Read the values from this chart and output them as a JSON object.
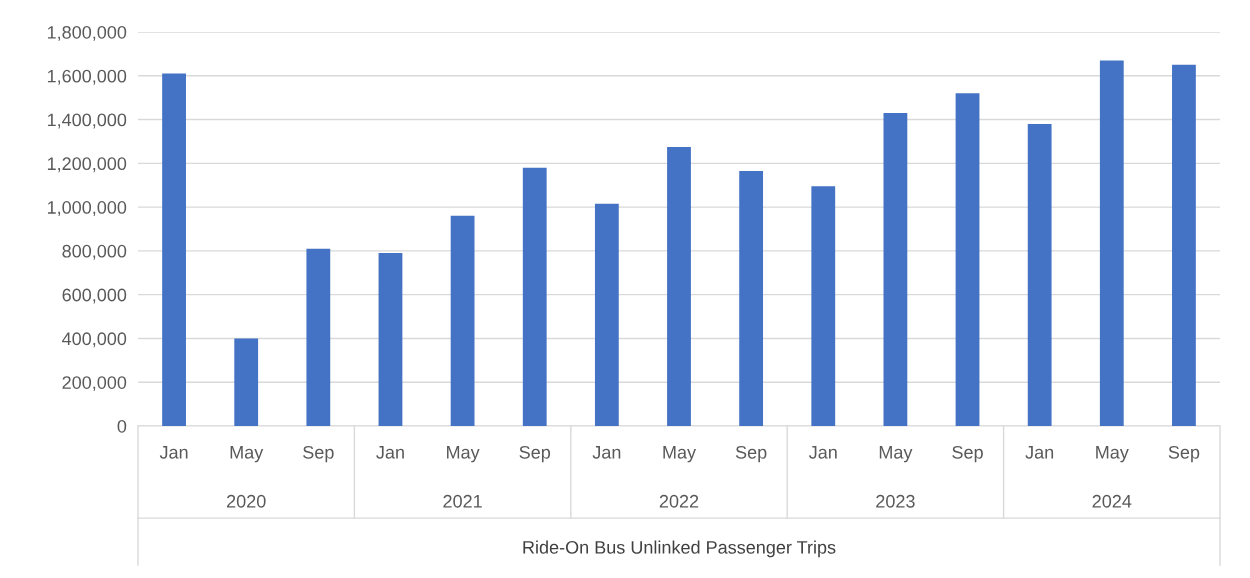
{
  "chart_data": {
    "type": "bar",
    "xlabel": "Ride-On Bus Unlinked Passenger Trips",
    "categories": [
      "Jan",
      "May",
      "Sep",
      "Jan",
      "May",
      "Sep",
      "Jan",
      "May",
      "Sep",
      "Jan",
      "May",
      "Sep",
      "Jan",
      "May",
      "Sep"
    ],
    "annotations": [
      "2020",
      "2021",
      "2022",
      "2023",
      "2024"
    ],
    "values": [
      1610000,
      400000,
      810000,
      790000,
      960000,
      1180000,
      1015000,
      1275000,
      1165000,
      1095000,
      1430000,
      1520000,
      1380000,
      1670000,
      1650000
    ],
    "color": "#4472c4",
    "ylim": [
      0,
      1800000
    ],
    "yticks": [
      {
        "value": 0,
        "label": "0"
      },
      {
        "value": 200000,
        "label": "200,000"
      },
      {
        "value": 400000,
        "label": "400,000"
      },
      {
        "value": 600000,
        "label": "600,000"
      },
      {
        "value": 800000,
        "label": "800,000"
      },
      {
        "value": 1000000,
        "label": "1,000,000"
      },
      {
        "value": 1200000,
        "label": "1,200,000"
      },
      {
        "value": 1400000,
        "label": "1,400,000"
      },
      {
        "value": 1600000,
        "label": "1,600,000"
      },
      {
        "value": 1800000,
        "label": "1,800,000"
      }
    ],
    "grid": "y"
  }
}
